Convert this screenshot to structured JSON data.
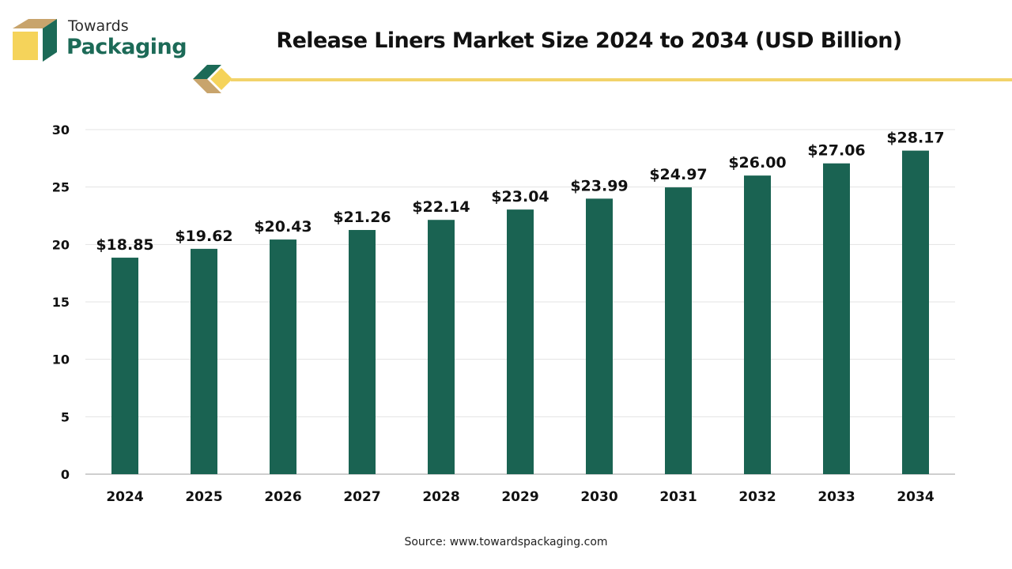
{
  "brand": {
    "line1": "Towards",
    "line2": "Packaging",
    "colors": {
      "green": "#1c6a57",
      "tan": "#c8a46c",
      "yellow": "#f5d35a"
    }
  },
  "header": {
    "title": "Release Liners Market Size 2024 to 2034 (USD Billion)",
    "accent_line_color": "#f2d36b"
  },
  "chart_data": {
    "type": "bar",
    "title": "Release Liners Market Size 2024 to 2034 (USD Billion)",
    "xlabel": "",
    "ylabel": "",
    "categories": [
      "2024",
      "2025",
      "2026",
      "2027",
      "2028",
      "2029",
      "2030",
      "2031",
      "2032",
      "2033",
      "2034"
    ],
    "values": [
      18.85,
      19.62,
      20.43,
      21.26,
      22.14,
      23.04,
      23.99,
      24.97,
      26.0,
      27.06,
      28.17
    ],
    "value_labels": [
      "$18.85",
      "$19.62",
      "$20.43",
      "$21.26",
      "$22.14",
      "$23.04",
      "$23.99",
      "$24.97",
      "$26.00",
      "$27.06",
      "$28.17"
    ],
    "ylim": [
      0,
      30
    ],
    "yticks": [
      0,
      5,
      10,
      15,
      20,
      25,
      30
    ],
    "grid": true,
    "legend": "none",
    "bar_color": "#1a6352"
  },
  "footer": {
    "source": "Source: www.towardspackaging.com"
  }
}
